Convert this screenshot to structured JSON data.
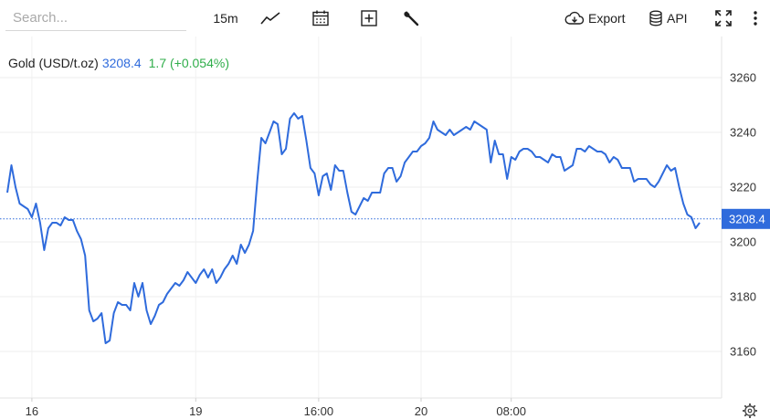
{
  "toolbar": {
    "search_placeholder": "Search...",
    "interval": "15m",
    "export_label": "Export",
    "api_label": "API",
    "icons": [
      "line-chart-icon",
      "calendar-icon",
      "add-indicator-icon",
      "wrench-icon",
      "cloud-download-icon",
      "database-icon",
      "fullscreen-icon",
      "more-vertical-icon"
    ]
  },
  "legend": {
    "symbol": "Gold (USD/t.oz)",
    "price": "3208.4",
    "change": "1.7 (+0.054%)"
  },
  "colors": {
    "line": "#2f6bdc",
    "change_positive": "#2fae4a",
    "price_tag": "#2f6bdc"
  },
  "chart_data": {
    "type": "line",
    "series": [
      {
        "name": "Gold (USD/t.oz)",
        "values": [
          3218,
          3228,
          3220,
          3214,
          3213,
          3212,
          3209,
          3214,
          3207,
          3197,
          3205,
          3207,
          3207,
          3206,
          3209,
          3208,
          3208,
          3204,
          3201,
          3195,
          3175,
          3171,
          3172,
          3174,
          3163,
          3164,
          3174,
          3178,
          3177,
          3177,
          3175,
          3185,
          3180,
          3185,
          3175,
          3170,
          3173,
          3177,
          3178,
          3181,
          3183,
          3185,
          3184,
          3186,
          3189,
          3187,
          3185,
          3188,
          3190,
          3187,
          3190,
          3185,
          3187,
          3190,
          3192,
          3195,
          3192,
          3199,
          3196,
          3199,
          3204,
          3222,
          3238,
          3236,
          3240,
          3244,
          3243,
          3232,
          3234,
          3245,
          3247,
          3245,
          3246,
          3237,
          3227,
          3225,
          3217,
          3224,
          3225,
          3219,
          3228,
          3226,
          3226,
          3218,
          3211,
          3210,
          3213,
          3216,
          3215,
          3218,
          3218,
          3218,
          3225,
          3227,
          3227,
          3222,
          3224,
          3229,
          3231,
          3233,
          3233,
          3235,
          3236,
          3238,
          3244,
          3241,
          3240,
          3239,
          3241,
          3239,
          3240,
          3241,
          3242,
          3241,
          3244,
          3243,
          3242,
          3241,
          3229,
          3237,
          3232,
          3232,
          3223,
          3231,
          3230,
          3233,
          3234,
          3234,
          3233,
          3231,
          3231,
          3230,
          3229,
          3232,
          3231,
          3231,
          3226,
          3227,
          3228,
          3234,
          3234,
          3233,
          3235,
          3234,
          3233,
          3233,
          3232,
          3229,
          3231,
          3230,
          3227,
          3227,
          3227,
          3222,
          3223,
          3223,
          3223,
          3221,
          3220,
          3222,
          3225,
          3228,
          3226,
          3227,
          3220,
          3214,
          3210,
          3209,
          3205,
          3207
        ]
      }
    ],
    "last_value": 3208.4,
    "y_ticks": [
      3160,
      3180,
      3200,
      3220,
      3240,
      3260
    ],
    "ylim": [
      3143,
      3275
    ],
    "x_tick_labels": [
      "16",
      "19",
      "16:00",
      "20",
      "08:00"
    ],
    "x_tick_index": [
      6,
      46,
      76,
      101,
      123
    ],
    "grid": true,
    "legend_position": "top-left"
  }
}
